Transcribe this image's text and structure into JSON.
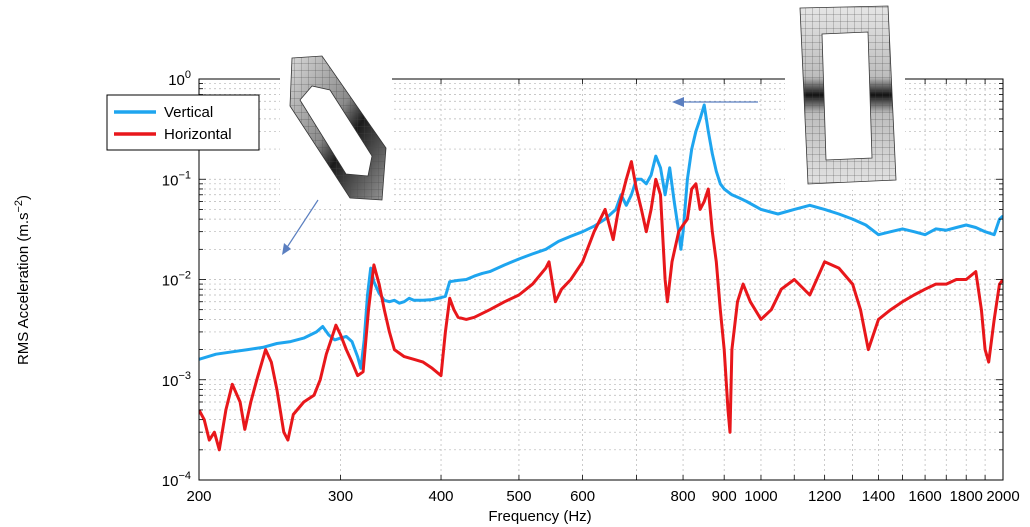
{
  "chart_data": {
    "type": "line",
    "title": "",
    "xlabel": "Frequency (Hz)",
    "ylabel_main": "RMS Acceleration (m.s",
    "ylabel_exp": "−2",
    "ylabel_close": ")",
    "x_scale": "log",
    "y_scale": "log",
    "xlim": [
      200,
      2000
    ],
    "ylim": [
      0.0001,
      1
    ],
    "grid": true,
    "legend_position": "top-left",
    "x_ticks": [
      {
        "value": 200,
        "label": "200"
      },
      {
        "value": 300,
        "label": "300"
      },
      {
        "value": 400,
        "label": "400"
      },
      {
        "value": 500,
        "label": "500"
      },
      {
        "value": 600,
        "label": "600"
      },
      {
        "value": 800,
        "label": "800"
      },
      {
        "value": 900,
        "label": "900"
      },
      {
        "value": 1000,
        "label": "1000"
      },
      {
        "value": 1200,
        "label": "1200"
      },
      {
        "value": 1400,
        "label": "1400"
      },
      {
        "value": 1600,
        "label": "1600"
      },
      {
        "value": 1800,
        "label": "1800"
      },
      {
        "value": 2000,
        "label": "2000"
      }
    ],
    "y_ticks": [
      {
        "value": 0.0001,
        "base": "10",
        "exp": "−4"
      },
      {
        "value": 0.001,
        "base": "10",
        "exp": "−3"
      },
      {
        "value": 0.01,
        "base": "10",
        "exp": "−2"
      },
      {
        "value": 0.1,
        "base": "10",
        "exp": "−1"
      },
      {
        "value": 1,
        "base": "10",
        "exp": "0"
      }
    ],
    "series": [
      {
        "name": "Vertical",
        "color": "#1ea5ef",
        "points": [
          [
            200,
            0.0016
          ],
          [
            210,
            0.0018
          ],
          [
            220,
            0.0019
          ],
          [
            230,
            0.002
          ],
          [
            240,
            0.0021
          ],
          [
            250,
            0.0023
          ],
          [
            260,
            0.0024
          ],
          [
            270,
            0.0026
          ],
          [
            280,
            0.003
          ],
          [
            285,
            0.0034
          ],
          [
            290,
            0.0028
          ],
          [
            295,
            0.0025
          ],
          [
            300,
            0.0026
          ],
          [
            305,
            0.0027
          ],
          [
            310,
            0.0024
          ],
          [
            315,
            0.0017
          ],
          [
            318,
            0.0013
          ],
          [
            321,
            0.0025
          ],
          [
            324,
            0.007
          ],
          [
            327,
            0.013
          ],
          [
            330,
            0.0095
          ],
          [
            335,
            0.0073
          ],
          [
            340,
            0.0062
          ],
          [
            345,
            0.006
          ],
          [
            350,
            0.0062
          ],
          [
            355,
            0.0058
          ],
          [
            360,
            0.006
          ],
          [
            365,
            0.0065
          ],
          [
            370,
            0.0062
          ],
          [
            380,
            0.0062
          ],
          [
            390,
            0.0063
          ],
          [
            400,
            0.0066
          ],
          [
            405,
            0.0068
          ],
          [
            410,
            0.0095
          ],
          [
            420,
            0.0098
          ],
          [
            430,
            0.01
          ],
          [
            440,
            0.0108
          ],
          [
            450,
            0.0115
          ],
          [
            460,
            0.012
          ],
          [
            480,
            0.014
          ],
          [
            500,
            0.016
          ],
          [
            520,
            0.018
          ],
          [
            540,
            0.02
          ],
          [
            560,
            0.024
          ],
          [
            580,
            0.027
          ],
          [
            600,
            0.03
          ],
          [
            620,
            0.034
          ],
          [
            640,
            0.04
          ],
          [
            660,
            0.05
          ],
          [
            670,
            0.07
          ],
          [
            680,
            0.055
          ],
          [
            690,
            0.07
          ],
          [
            700,
            0.1
          ],
          [
            710,
            0.1
          ],
          [
            720,
            0.09
          ],
          [
            730,
            0.11
          ],
          [
            740,
            0.17
          ],
          [
            750,
            0.13
          ],
          [
            760,
            0.07
          ],
          [
            770,
            0.13
          ],
          [
            780,
            0.06
          ],
          [
            790,
            0.03
          ],
          [
            795,
            0.02
          ],
          [
            800,
            0.03
          ],
          [
            810,
            0.1
          ],
          [
            820,
            0.2
          ],
          [
            830,
            0.3
          ],
          [
            840,
            0.4
          ],
          [
            850,
            0.55
          ],
          [
            860,
            0.3
          ],
          [
            870,
            0.18
          ],
          [
            880,
            0.12
          ],
          [
            890,
            0.09
          ],
          [
            900,
            0.08
          ],
          [
            920,
            0.07
          ],
          [
            940,
            0.065
          ],
          [
            960,
            0.06
          ],
          [
            1000,
            0.05
          ],
          [
            1050,
            0.045
          ],
          [
            1100,
            0.05
          ],
          [
            1150,
            0.055
          ],
          [
            1200,
            0.05
          ],
          [
            1250,
            0.045
          ],
          [
            1300,
            0.04
          ],
          [
            1350,
            0.035
          ],
          [
            1400,
            0.028
          ],
          [
            1450,
            0.03
          ],
          [
            1500,
            0.032
          ],
          [
            1550,
            0.03
          ],
          [
            1600,
            0.028
          ],
          [
            1650,
            0.032
          ],
          [
            1700,
            0.031
          ],
          [
            1750,
            0.033
          ],
          [
            1800,
            0.035
          ],
          [
            1850,
            0.033
          ],
          [
            1900,
            0.03
          ],
          [
            1950,
            0.028
          ],
          [
            1980,
            0.04
          ],
          [
            2000,
            0.043
          ]
        ]
      },
      {
        "name": "Horizontal",
        "color": "#e8171b",
        "points": [
          [
            200,
            0.0005
          ],
          [
            203,
            0.0004
          ],
          [
            206,
            0.00025
          ],
          [
            209,
            0.0003
          ],
          [
            212,
            0.0002
          ],
          [
            216,
            0.0005
          ],
          [
            220,
            0.0009
          ],
          [
            225,
            0.0006
          ],
          [
            228,
            0.00032
          ],
          [
            232,
            0.0006
          ],
          [
            236,
            0.001
          ],
          [
            242,
            0.002
          ],
          [
            246,
            0.0015
          ],
          [
            250,
            0.0008
          ],
          [
            255,
            0.0003
          ],
          [
            258,
            0.00025
          ],
          [
            262,
            0.00045
          ],
          [
            270,
            0.0006
          ],
          [
            278,
            0.0007
          ],
          [
            283,
            0.001
          ],
          [
            288,
            0.0018
          ],
          [
            292,
            0.0025
          ],
          [
            296,
            0.0035
          ],
          [
            300,
            0.0028
          ],
          [
            305,
            0.002
          ],
          [
            310,
            0.0015
          ],
          [
            315,
            0.0011
          ],
          [
            320,
            0.0012
          ],
          [
            325,
            0.005
          ],
          [
            330,
            0.014
          ],
          [
            335,
            0.009
          ],
          [
            340,
            0.005
          ],
          [
            345,
            0.003
          ],
          [
            350,
            0.002
          ],
          [
            360,
            0.0017
          ],
          [
            370,
            0.0016
          ],
          [
            380,
            0.0015
          ],
          [
            390,
            0.0013
          ],
          [
            400,
            0.0011
          ],
          [
            405,
            0.003
          ],
          [
            410,
            0.0065
          ],
          [
            415,
            0.005
          ],
          [
            420,
            0.0042
          ],
          [
            430,
            0.004
          ],
          [
            440,
            0.0042
          ],
          [
            460,
            0.005
          ],
          [
            480,
            0.006
          ],
          [
            500,
            0.007
          ],
          [
            520,
            0.009
          ],
          [
            540,
            0.013
          ],
          [
            545,
            0.015
          ],
          [
            555,
            0.006
          ],
          [
            565,
            0.008
          ],
          [
            580,
            0.01
          ],
          [
            600,
            0.015
          ],
          [
            620,
            0.03
          ],
          [
            640,
            0.05
          ],
          [
            655,
            0.025
          ],
          [
            665,
            0.05
          ],
          [
            680,
            0.1
          ],
          [
            690,
            0.15
          ],
          [
            700,
            0.08
          ],
          [
            710,
            0.05
          ],
          [
            720,
            0.03
          ],
          [
            730,
            0.05
          ],
          [
            740,
            0.1
          ],
          [
            750,
            0.07
          ],
          [
            760,
            0.01
          ],
          [
            765,
            0.006
          ],
          [
            775,
            0.015
          ],
          [
            790,
            0.03
          ],
          [
            800,
            0.035
          ],
          [
            810,
            0.04
          ],
          [
            820,
            0.08
          ],
          [
            830,
            0.09
          ],
          [
            840,
            0.05
          ],
          [
            850,
            0.06
          ],
          [
            860,
            0.08
          ],
          [
            870,
            0.03
          ],
          [
            880,
            0.015
          ],
          [
            890,
            0.005
          ],
          [
            900,
            0.002
          ],
          [
            910,
            0.0005
          ],
          [
            915,
            0.0003
          ],
          [
            920,
            0.002
          ],
          [
            935,
            0.006
          ],
          [
            950,
            0.009
          ],
          [
            970,
            0.006
          ],
          [
            1000,
            0.004
          ],
          [
            1030,
            0.005
          ],
          [
            1060,
            0.008
          ],
          [
            1100,
            0.01
          ],
          [
            1150,
            0.007
          ],
          [
            1200,
            0.015
          ],
          [
            1250,
            0.013
          ],
          [
            1300,
            0.009
          ],
          [
            1330,
            0.005
          ],
          [
            1360,
            0.002
          ],
          [
            1400,
            0.004
          ],
          [
            1450,
            0.005
          ],
          [
            1500,
            0.006
          ],
          [
            1550,
            0.007
          ],
          [
            1600,
            0.008
          ],
          [
            1650,
            0.009
          ],
          [
            1700,
            0.009
          ],
          [
            1750,
            0.01
          ],
          [
            1800,
            0.01
          ],
          [
            1850,
            0.012
          ],
          [
            1880,
            0.005
          ],
          [
            1900,
            0.002
          ],
          [
            1920,
            0.0015
          ],
          [
            1950,
            0.004
          ],
          [
            1980,
            0.009
          ],
          [
            2000,
            0.01
          ]
        ]
      }
    ]
  }
}
